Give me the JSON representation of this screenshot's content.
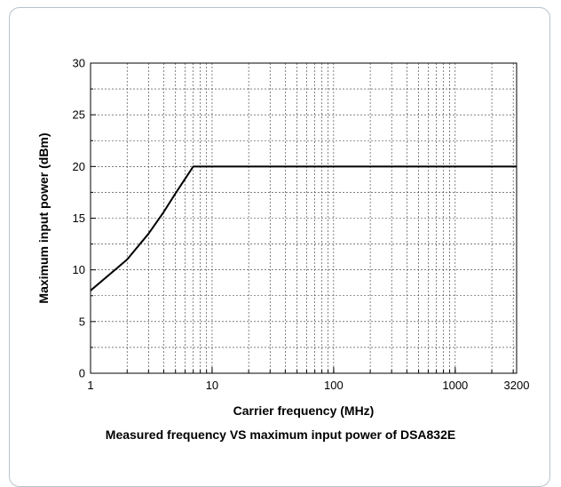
{
  "chart_data": {
    "type": "line",
    "caption": "Measured frequency VS maximum input power of DSA832E",
    "xlabel": "Carrier frequency (MHz)",
    "ylabel": "Maximum input power (dBm)",
    "xscale": "log",
    "xlim": [
      1,
      3200
    ],
    "ylim": [
      0,
      30
    ],
    "grid": true,
    "x_ticks": [
      1,
      10,
      100,
      1000,
      3200
    ],
    "x_tick_labels": [
      "1",
      "10",
      "100",
      "1000",
      "3200"
    ],
    "y_ticks": [
      0,
      5,
      10,
      15,
      20,
      25,
      30
    ],
    "y_tick_labels": [
      "0",
      "5",
      "10",
      "15",
      "20",
      "25",
      "30"
    ],
    "series": [
      {
        "x": [
          1,
          2,
          3,
          4,
          5,
          7,
          10,
          100,
          1000,
          3200
        ],
        "y": [
          8,
          11,
          13.5,
          15.6,
          17.4,
          20,
          20,
          20,
          20,
          20
        ],
        "color": "#000000"
      }
    ]
  }
}
